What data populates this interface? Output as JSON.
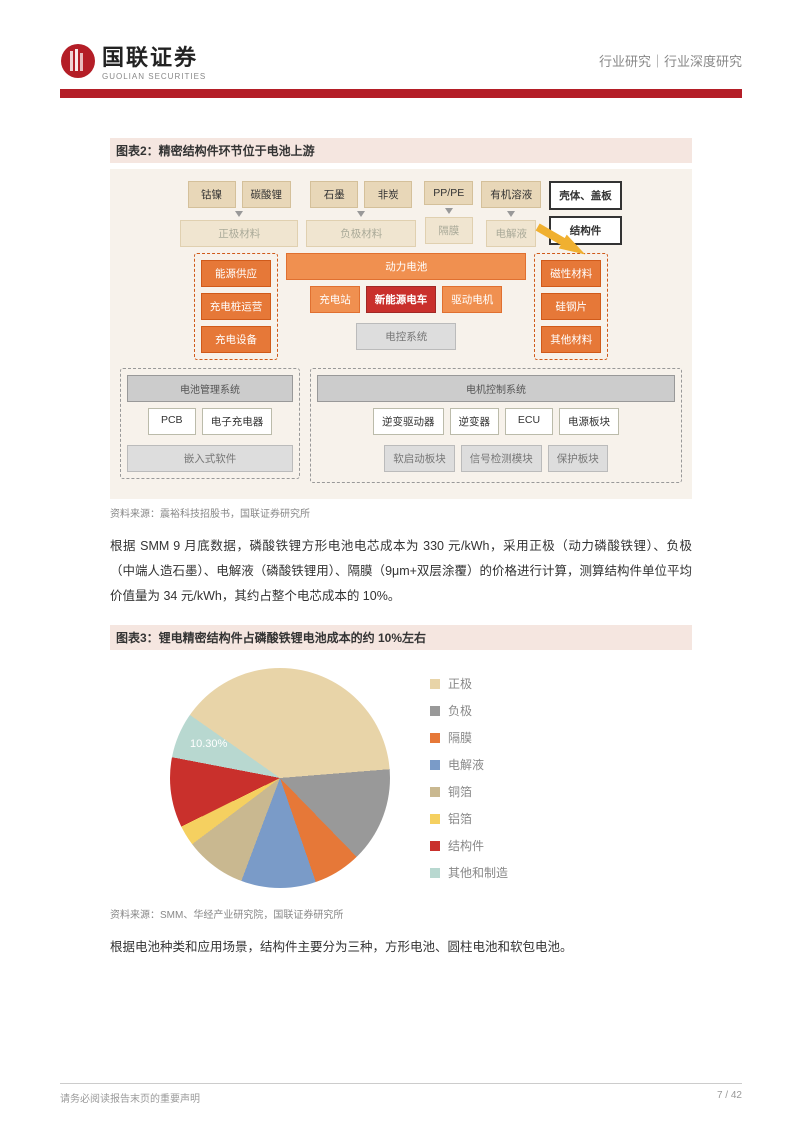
{
  "header": {
    "company_cn": "国联证券",
    "company_en": "GUOLIAN SECURITIES",
    "right_text": "行业研究｜行业深度研究",
    "logo_color": "#b41e27"
  },
  "figure2": {
    "title": "图表2：精密结构件环节位于电池上游",
    "row1": [
      "钴镍",
      "碳酸锂",
      "石墨",
      "非炭",
      "PP/PE",
      "有机溶液",
      "壳体、盖板"
    ],
    "row2": [
      "正极材料",
      "负极材料",
      "隔膜",
      "电解液",
      "结构件"
    ],
    "row3_left": [
      "能源供应",
      "充电桩运营",
      "充电设备"
    ],
    "row3_mid": [
      "充电站",
      "动力电池",
      "新能源电车",
      "驱动电机",
      "电控系统"
    ],
    "row3_right": [
      "磁性材料",
      "硅钢片",
      "其他材料"
    ],
    "row4_left_hdr": "电池管理系统",
    "row4_left": [
      "PCB",
      "电子充电器"
    ],
    "row4_left2": "嵌入式软件",
    "row4_right_hdr": "电机控制系统",
    "row4_right": [
      "逆变驱动器",
      "逆变器",
      "ECU",
      "电源板块"
    ],
    "row4_right2": [
      "软启动板块",
      "信号检测模块",
      "保护板块"
    ],
    "caption": "资料来源：震裕科技招股书，国联证券研究所",
    "bg_color": "#f7f2eb"
  },
  "paragraph1": "根据 SMM 9 月底数据，磷酸铁锂方形电池电芯成本为 330 元/kWh，采用正极（动力磷酸铁锂）、负极（中端人造石墨）、电解液（磷酸铁锂用）、隔膜（9μm+双层涂覆）的价格进行计算，测算结构件单位平均价值量为 34 元/kWh，其约占整个电芯成本的 10%。",
  "figure3": {
    "title": "图表3：锂电精密结构件占磷酸铁锂电池成本的约 10%左右",
    "caption": "资料来源：SMM、华经产业研究院，国联证券研究所",
    "label_on_pie": "10.30%",
    "legend": [
      {
        "label": "正极",
        "color": "#e8d4a8"
      },
      {
        "label": "负极",
        "color": "#999999"
      },
      {
        "label": "隔膜",
        "color": "#e67838"
      },
      {
        "label": "电解液",
        "color": "#7a9bc8"
      },
      {
        "label": "铜箔",
        "color": "#c9b890"
      },
      {
        "label": "铝箔",
        "color": "#f5d060"
      },
      {
        "label": "结构件",
        "color": "#c9302c"
      },
      {
        "label": "其他和制造",
        "color": "#b8d8d0"
      }
    ],
    "slices": [
      {
        "name": "正极",
        "pct": 39,
        "color": "#e8d4a8"
      },
      {
        "name": "负极",
        "pct": 14,
        "color": "#999999"
      },
      {
        "name": "隔膜",
        "pct": 7,
        "color": "#e67838"
      },
      {
        "name": "电解液",
        "pct": 11,
        "color": "#7a9bc8"
      },
      {
        "name": "铜箔",
        "pct": 9,
        "color": "#c9b890"
      },
      {
        "name": "铝箔",
        "pct": 3,
        "color": "#f5d060"
      },
      {
        "name": "结构件",
        "pct": 10.3,
        "color": "#c9302c"
      },
      {
        "name": "其他和制造",
        "pct": 6.7,
        "color": "#b8d8d0"
      }
    ]
  },
  "paragraph2": "根据电池种类和应用场景，结构件主要分为三种，方形电池、圆柱电池和软包电池。",
  "footer": {
    "left": "请务必阅读报告末页的重要声明",
    "right_page": "7 / 42"
  }
}
